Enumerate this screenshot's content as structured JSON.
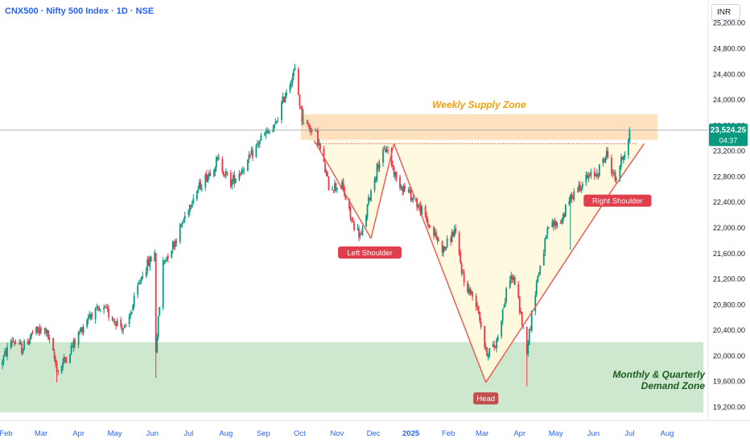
{
  "header": {
    "symbol_title": "CNX500 · Nifty 500 Index · 1D · NSE",
    "currency": "INR"
  },
  "colors": {
    "up": "#089981",
    "down": "#f23645",
    "supply_zone": "#fddcb3",
    "demand_zone": "#c8e6c9",
    "pattern_fill": "#fff8dc",
    "neckline": "#ef5350",
    "axis_label": "#2962ff",
    "supply_text": "#f59e0b",
    "demand_text": "#1b5e20",
    "price_tag": "#089981",
    "last_line": "#9aa7a0",
    "label_bg": "#e03e4a",
    "head_bg": "#c0504d"
  },
  "chart_data": {
    "type": "candlestick",
    "ylim": [
      19100,
      25250
    ],
    "y_ticks": [
      19200,
      19600,
      20000,
      20400,
      20800,
      21200,
      21600,
      22000,
      22400,
      22800,
      23200,
      23600,
      24000,
      24400,
      24800,
      25200
    ],
    "y_tick_labels": [
      "19,200.00",
      "19,600.00",
      "20,000.00",
      "20,400.00",
      "20,800.00",
      "21,200.00",
      "21,600.00",
      "22,000.00",
      "22,400.00",
      "22,800.00",
      "23,200.00",
      "23,600.00",
      "24,000.00",
      "24,400.00",
      "24,800.00",
      "25,200.00"
    ],
    "x_range": [
      "2024-01-27",
      "2025-09-04"
    ],
    "x_ticks": [
      {
        "date": "2024-02-01",
        "label": "Feb",
        "bold": false
      },
      {
        "date": "2024-03-01",
        "label": "Mar",
        "bold": false
      },
      {
        "date": "2024-04-01",
        "label": "Apr",
        "bold": false
      },
      {
        "date": "2024-05-01",
        "label": "May",
        "bold": false
      },
      {
        "date": "2024-06-01",
        "label": "Jun",
        "bold": false
      },
      {
        "date": "2024-07-01",
        "label": "Jul",
        "bold": false
      },
      {
        "date": "2024-08-01",
        "label": "Aug",
        "bold": false
      },
      {
        "date": "2024-09-01",
        "label": "Sep",
        "bold": false
      },
      {
        "date": "2024-10-01",
        "label": "Oct",
        "bold": false
      },
      {
        "date": "2024-11-01",
        "label": "Nov",
        "bold": false
      },
      {
        "date": "2024-12-01",
        "label": "Dec",
        "bold": false
      },
      {
        "date": "2025-01-01",
        "label": "2025",
        "bold": true
      },
      {
        "date": "2025-02-01",
        "label": "Feb",
        "bold": false
      },
      {
        "date": "2025-03-01",
        "label": "Mar",
        "bold": false
      },
      {
        "date": "2025-04-01",
        "label": "Apr",
        "bold": false
      },
      {
        "date": "2025-05-01",
        "label": "May",
        "bold": false
      },
      {
        "date": "2025-06-01",
        "label": "Jun",
        "bold": false
      },
      {
        "date": "2025-07-01",
        "label": "Jul",
        "bold": false
      },
      {
        "date": "2025-08-01",
        "label": "Aug",
        "bold": false
      }
    ],
    "price_path": [
      [
        "2024-01-27",
        19850
      ],
      [
        "2024-02-06",
        20250
      ],
      [
        "2024-02-14",
        20100
      ],
      [
        "2024-02-23",
        20350
      ],
      [
        "2024-03-05",
        20400
      ],
      [
        "2024-03-15",
        19750
      ],
      [
        "2024-03-27",
        20150
      ],
      [
        "2024-04-10",
        20650
      ],
      [
        "2024-04-23",
        20700
      ],
      [
        "2024-05-10",
        20400
      ],
      [
        "2024-05-24",
        21300
      ],
      [
        "2024-06-03",
        21600
      ],
      [
        "2024-06-04",
        20100
      ],
      [
        "2024-06-10",
        21450
      ],
      [
        "2024-06-20",
        21800
      ],
      [
        "2024-07-05",
        22500
      ],
      [
        "2024-07-25",
        23050
      ],
      [
        "2024-08-05",
        22700
      ],
      [
        "2024-08-20",
        23050
      ],
      [
        "2024-08-30",
        23400
      ],
      [
        "2024-09-10",
        23550
      ],
      [
        "2024-09-20",
        24150
      ],
      [
        "2024-09-27",
        24450
      ],
      [
        "2024-10-03",
        23700
      ],
      [
        "2024-10-15",
        23450
      ],
      [
        "2024-10-25",
        22650
      ],
      [
        "2024-11-05",
        22650
      ],
      [
        "2024-11-13",
        22100
      ],
      [
        "2024-11-21",
        21850
      ],
      [
        "2024-11-28",
        22500
      ],
      [
        "2024-12-05",
        23000
      ],
      [
        "2024-12-12",
        23250
      ],
      [
        "2024-12-20",
        22750
      ],
      [
        "2025-01-01",
        22500
      ],
      [
        "2025-01-10",
        22250
      ],
      [
        "2025-01-17",
        22000
      ],
      [
        "2025-01-28",
        21650
      ],
      [
        "2025-02-06",
        21950
      ],
      [
        "2025-02-14",
        21150
      ],
      [
        "2025-02-25",
        20800
      ],
      [
        "2025-03-04",
        20050
      ],
      [
        "2025-03-12",
        20150
      ],
      [
        "2025-03-24",
        21250
      ],
      [
        "2025-03-28",
        21150
      ],
      [
        "2025-04-07",
        20100
      ],
      [
        "2025-04-15",
        21150
      ],
      [
        "2025-04-25",
        22000
      ],
      [
        "2025-05-05",
        22100
      ],
      [
        "2025-05-14",
        22500
      ],
      [
        "2025-05-25",
        22750
      ],
      [
        "2025-06-04",
        22850
      ],
      [
        "2025-06-12",
        23150
      ],
      [
        "2025-06-19",
        22750
      ],
      [
        "2025-06-27",
        23200
      ],
      [
        "2025-07-01",
        23480
      ]
    ],
    "spikes": [
      {
        "date": "2024-06-04",
        "low": 19650
      },
      {
        "date": "2024-10-04",
        "high": 23850
      },
      {
        "date": "2025-04-07",
        "low": 19520
      },
      {
        "date": "2025-05-13",
        "low": 21650
      },
      {
        "date": "2024-03-14",
        "low": 19580
      }
    ],
    "zones": [
      {
        "name": "weekly-supply-zone",
        "label": "Weekly Supply Zone",
        "y_top": 23770,
        "y_bottom": 23370,
        "x_start": "2024-10-02",
        "x_end": "2025-07-24"
      },
      {
        "name": "demand-zone",
        "label_line1": "Monthly & Quarterly",
        "label_line2": "Demand Zone",
        "y_top": 20210,
        "y_bottom": 19110,
        "x_start": "2024-01-27",
        "x_end": "2025-08-31"
      }
    ],
    "pattern_polygon": [
      [
        "2024-10-13",
        23360
      ],
      [
        "2024-11-29",
        21830
      ],
      [
        "2024-12-18",
        23310
      ],
      [
        "2025-03-04",
        19580
      ],
      [
        "2025-06-17",
        22600
      ],
      [
        "2025-07-13",
        23310
      ]
    ],
    "pattern_lines": [
      [
        [
          "2024-10-13",
          23360
        ],
        [
          "2024-11-29",
          21830
        ]
      ],
      [
        [
          "2024-11-29",
          21830
        ],
        [
          "2024-12-18",
          23310
        ]
      ],
      [
        [
          "2024-12-18",
          23310
        ],
        [
          "2025-03-04",
          19580
        ]
      ],
      [
        [
          "2025-03-04",
          19580
        ],
        [
          "2025-06-17",
          22600
        ]
      ],
      [
        [
          "2025-06-17",
          22600
        ],
        [
          "2025-07-13",
          23310
        ]
      ]
    ],
    "neckline": {
      "y": 23310,
      "x_start": "2024-10-13",
      "x_end": "2025-07-08"
    },
    "annotations": [
      {
        "name": "left-shoulder-label",
        "text": "Left Shoulder",
        "date": "2024-11-28",
        "value": 21610,
        "bg": "label_bg"
      },
      {
        "name": "head-label",
        "text": "Head",
        "date": "2025-03-04",
        "value": 19330,
        "bg": "head_bg"
      },
      {
        "name": "right-shoulder-label",
        "text": "Right Shoulder",
        "date": "2025-06-21",
        "value": 22420,
        "bg": "label_bg"
      }
    ],
    "last_price": {
      "value": 23524.25,
      "label": "23,524.25",
      "countdown": "04:37"
    }
  }
}
